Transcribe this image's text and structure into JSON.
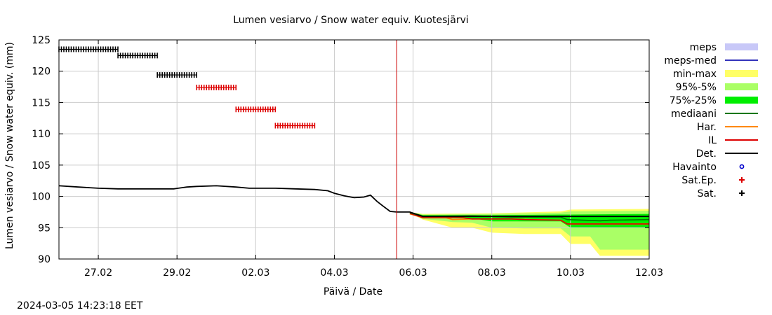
{
  "chart_data": {
    "type": "line",
    "title": "Lumen vesiarvo / Snow water equiv.  Kuotesjärvi",
    "xlabel": "Päivä / Date",
    "ylabel": "Lumen vesiarvo / Snow water equiv. (mm)",
    "ylim": [
      90,
      125
    ],
    "yticks": [
      90,
      95,
      100,
      105,
      110,
      115,
      120,
      125
    ],
    "xlim": [
      "2024-02-26",
      "2024-03-12"
    ],
    "xticks": [
      "27.02",
      "29.02",
      "02.03",
      "04.03",
      "06.03",
      "08.03",
      "10.03",
      "12.03"
    ],
    "xtick_dates": [
      "2024-02-27",
      "2024-02-29",
      "2024-03-02",
      "2024-03-04",
      "2024-03-06",
      "2024-03-08",
      "2024-03-10",
      "2024-03-12"
    ],
    "grid": true,
    "legend_position": "right",
    "forecast_start": "2024-03-05T14:00",
    "series": [
      {
        "name": "Det.",
        "color": "#000000",
        "style": "line",
        "points": [
          [
            "2024-02-26T00:00",
            101.7
          ],
          [
            "2024-02-26T12:00",
            101.5
          ],
          [
            "2024-02-27T00:00",
            101.3
          ],
          [
            "2024-02-27T12:00",
            101.2
          ],
          [
            "2024-02-28T00:00",
            101.2
          ],
          [
            "2024-02-28T12:00",
            101.2
          ],
          [
            "2024-02-28T22:00",
            101.2
          ],
          [
            "2024-02-29T06:00",
            101.5
          ],
          [
            "2024-02-29T12:00",
            101.6
          ],
          [
            "2024-03-01T00:00",
            101.7
          ],
          [
            "2024-03-01T12:00",
            101.5
          ],
          [
            "2024-03-01T20:00",
            101.3
          ],
          [
            "2024-03-02T12:00",
            101.3
          ],
          [
            "2024-03-03T00:00",
            101.2
          ],
          [
            "2024-03-03T12:00",
            101.1
          ],
          [
            "2024-03-03T20:00",
            100.9
          ],
          [
            "2024-03-04T00:00",
            100.5
          ],
          [
            "2024-03-04T06:00",
            100.1
          ],
          [
            "2024-03-04T12:00",
            99.8
          ],
          [
            "2024-03-04T18:00",
            99.9
          ],
          [
            "2024-03-04T22:00",
            100.2
          ],
          [
            "2024-03-05T02:00",
            99.2
          ],
          [
            "2024-03-05T06:00",
            98.4
          ],
          [
            "2024-03-05T10:00",
            97.6
          ],
          [
            "2024-03-05T14:00",
            97.5
          ],
          [
            "2024-03-05T20:00",
            97.5
          ],
          [
            "2024-03-05T22:00",
            97.5
          ],
          [
            "2024-03-06T06:00",
            96.8
          ],
          [
            "2024-03-07T12:00",
            96.8
          ],
          [
            "2024-03-08T12:00",
            96.8
          ],
          [
            "2024-03-10T00:00",
            96.8
          ],
          [
            "2024-03-12T00:00",
            96.8
          ]
        ]
      },
      {
        "name": "mediaani",
        "color": "#007700",
        "style": "line",
        "points": [
          [
            "2024-03-05T22:00",
            97.4
          ],
          [
            "2024-03-06T06:00",
            96.8
          ],
          [
            "2024-03-07T12:00",
            96.9
          ],
          [
            "2024-03-08T12:00",
            96.7
          ],
          [
            "2024-03-09T18:00",
            96.7
          ],
          [
            "2024-03-09T22:00",
            96.3
          ],
          [
            "2024-03-10T18:00",
            96.1
          ],
          [
            "2024-03-11T00:00",
            96.2
          ],
          [
            "2024-03-12T00:00",
            96.3
          ]
        ]
      },
      {
        "name": "IL",
        "color": "#dd0000",
        "style": "line",
        "points": [
          [
            "2024-03-05T22:00",
            97.3
          ],
          [
            "2024-03-06T06:00",
            96.6
          ],
          [
            "2024-03-07T06:00",
            96.6
          ],
          [
            "2024-03-07T12:00",
            96.4
          ],
          [
            "2024-03-08T12:00",
            96.4
          ],
          [
            "2024-03-08T20:00",
            96.3
          ],
          [
            "2024-03-09T18:00",
            96.2
          ],
          [
            "2024-03-09T22:00",
            95.6
          ],
          [
            "2024-03-12T00:00",
            95.6
          ]
        ]
      },
      {
        "name": "Har.",
        "color": "#ff8800",
        "style": "line",
        "points": [
          [
            "2024-03-05T22:00",
            97.2
          ],
          [
            "2024-03-06T06:00",
            96.6
          ],
          [
            "2024-03-06T20:00",
            96.6
          ],
          [
            "2024-03-07T00:00",
            96.3
          ],
          [
            "2024-03-07T12:00",
            96.4
          ],
          [
            "2024-03-08T12:00",
            96.4
          ],
          [
            "2024-03-09T18:00",
            96.2
          ],
          [
            "2024-03-09T22:00",
            95.6
          ],
          [
            "2024-03-12T00:00",
            95.6
          ]
        ]
      }
    ],
    "bands": [
      {
        "name": "min-max",
        "color": "#ffff66",
        "upper": [
          [
            "2024-03-05T22:00",
            97.5
          ],
          [
            "2024-03-06T06:00",
            97.2
          ],
          [
            "2024-03-08T00:00",
            97.3
          ],
          [
            "2024-03-09T18:00",
            97.6
          ],
          [
            "2024-03-10T00:00",
            97.9
          ],
          [
            "2024-03-12T00:00",
            98.0
          ]
        ],
        "lower": [
          [
            "2024-03-05T22:00",
            97.3
          ],
          [
            "2024-03-06T06:00",
            96.3
          ],
          [
            "2024-03-07T00:00",
            95.0
          ],
          [
            "2024-03-07T12:00",
            95.0
          ],
          [
            "2024-03-08T00:00",
            94.2
          ],
          [
            "2024-03-08T20:00",
            94.0
          ],
          [
            "2024-03-09T18:00",
            94.0
          ],
          [
            "2024-03-10T00:00",
            92.4
          ],
          [
            "2024-03-10T12:00",
            92.4
          ],
          [
            "2024-03-10T18:00",
            90.5
          ],
          [
            "2024-03-12T00:00",
            90.5
          ]
        ]
      },
      {
        "name": "95%-5%",
        "color": "#aaff66",
        "upper": [
          [
            "2024-03-05T22:00",
            97.5
          ],
          [
            "2024-03-06T06:00",
            97.1
          ],
          [
            "2024-03-08T00:00",
            97.2
          ],
          [
            "2024-03-09T18:00",
            97.4
          ],
          [
            "2024-03-10T00:00",
            97.6
          ],
          [
            "2024-03-12T00:00",
            97.7
          ]
        ],
        "lower": [
          [
            "2024-03-05T22:00",
            97.3
          ],
          [
            "2024-03-06T06:00",
            96.4
          ],
          [
            "2024-03-07T00:00",
            95.9
          ],
          [
            "2024-03-07T12:00",
            95.8
          ],
          [
            "2024-03-08T00:00",
            95.0
          ],
          [
            "2024-03-08T20:00",
            94.9
          ],
          [
            "2024-03-09T18:00",
            94.9
          ],
          [
            "2024-03-10T00:00",
            93.6
          ],
          [
            "2024-03-10T12:00",
            93.6
          ],
          [
            "2024-03-10T18:00",
            91.5
          ],
          [
            "2024-03-12T00:00",
            91.5
          ]
        ]
      },
      {
        "name": "75%-25%",
        "color": "#00ee00",
        "upper": [
          [
            "2024-03-05T22:00",
            97.5
          ],
          [
            "2024-03-06T06:00",
            97.0
          ],
          [
            "2024-03-08T00:00",
            97.0
          ],
          [
            "2024-03-09T18:00",
            97.1
          ],
          [
            "2024-03-10T00:00",
            97.1
          ],
          [
            "2024-03-12T00:00",
            97.2
          ]
        ],
        "lower": [
          [
            "2024-03-05T22:00",
            97.3
          ],
          [
            "2024-03-06T06:00",
            96.6
          ],
          [
            "2024-03-07T12:00",
            96.5
          ],
          [
            "2024-03-08T00:00",
            96.0
          ],
          [
            "2024-03-09T18:00",
            96.0
          ],
          [
            "2024-03-10T00:00",
            95.0
          ],
          [
            "2024-03-12T00:00",
            95.0
          ]
        ]
      }
    ],
    "markers": [
      {
        "name": "Sat.",
        "color": "#000000",
        "symbol": "+",
        "segments": [
          {
            "from": "2024-02-26T00:00",
            "to": "2024-02-27T12:00",
            "value": 123.5
          },
          {
            "from": "2024-02-27T12:00",
            "to": "2024-02-28T12:00",
            "value": 122.5
          },
          {
            "from": "2024-02-28T12:00",
            "to": "2024-02-29T12:00",
            "value": 119.4
          }
        ]
      },
      {
        "name": "Sat.Ep.",
        "color": "#dd0000",
        "symbol": "+",
        "segments": [
          {
            "from": "2024-02-29T12:00",
            "to": "2024-03-01T12:00",
            "value": 117.4
          },
          {
            "from": "2024-03-01T12:00",
            "to": "2024-03-02T12:00",
            "value": 113.9
          },
          {
            "from": "2024-03-02T12:00",
            "to": "2024-03-03T12:00",
            "value": 111.3
          }
        ]
      }
    ],
    "legend": [
      {
        "label": "meps",
        "kind": "box",
        "color": "#c8c8f8"
      },
      {
        "label": "meps-med",
        "kind": "line",
        "color": "#3333bb"
      },
      {
        "label": "min-max",
        "kind": "box",
        "color": "#ffff66"
      },
      {
        "label": "95%-5%",
        "kind": "box",
        "color": "#aaff66"
      },
      {
        "label": "75%-25%",
        "kind": "box",
        "color": "#00ee00"
      },
      {
        "label": "mediaani",
        "kind": "line",
        "color": "#007700"
      },
      {
        "label": "Har.",
        "kind": "line",
        "color": "#ff8800"
      },
      {
        "label": "IL",
        "kind": "line",
        "color": "#dd0000"
      },
      {
        "label": "Det.",
        "kind": "line",
        "color": "#000000"
      },
      {
        "label": "Havainto",
        "kind": "circle",
        "color": "#0000cc"
      },
      {
        "label": "Sat.Ep.",
        "kind": "plus",
        "color": "#dd0000"
      },
      {
        "label": "Sat.",
        "kind": "plus",
        "color": "#000000"
      }
    ]
  },
  "timestamp": "2024-03-05 14:23:18 EET"
}
